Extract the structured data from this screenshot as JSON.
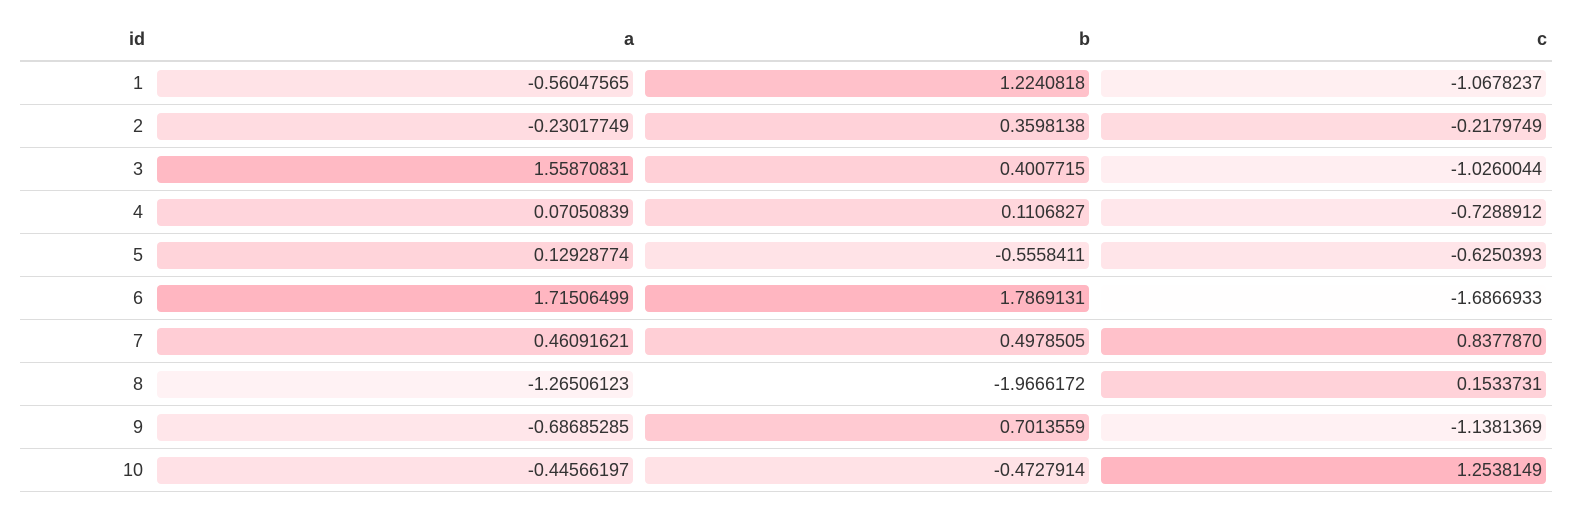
{
  "table": {
    "columns": [
      "id",
      "a",
      "b",
      "c"
    ],
    "rows": [
      {
        "id": "1",
        "a": "-0.56047565",
        "b": "1.2240818",
        "c": "-1.0678237",
        "a_level": 0.38,
        "b_level": 0.85,
        "c_level": 0.22
      },
      {
        "id": "2",
        "a": "-0.23017749",
        "b": "0.3598138",
        "c": "-0.2179749",
        "a_level": 0.48,
        "b_level": 0.62,
        "c_level": 0.5
      },
      {
        "id": "3",
        "a": "1.55870831",
        "b": "0.4007715",
        "c": "-1.0260044",
        "a_level": 0.95,
        "b_level": 0.64,
        "c_level": 0.23
      },
      {
        "id": "4",
        "a": "0.07050839",
        "b": "0.1106827",
        "c": "-0.7288912",
        "a_level": 0.57,
        "b_level": 0.56,
        "c_level": 0.33
      },
      {
        "id": "5",
        "a": "0.12928774",
        "b": "-0.5558411",
        "c": "-0.6250393",
        "a_level": 0.59,
        "b_level": 0.38,
        "c_level": 0.36
      },
      {
        "id": "6",
        "a": "1.71506499",
        "b": "1.7869131",
        "c": "-1.6866933",
        "a_level": 1.0,
        "b_level": 1.0,
        "c_level": 0.02
      },
      {
        "id": "7",
        "a": "0.46091621",
        "b": "0.4978505",
        "c": "0.8377870",
        "a_level": 0.68,
        "b_level": 0.66,
        "c_level": 0.85
      },
      {
        "id": "8",
        "a": "-1.26506123",
        "b": "-1.9666172",
        "c": "0.1533731",
        "a_level": 0.18,
        "b_level": 0.0,
        "c_level": 0.62
      },
      {
        "id": "9",
        "a": "-0.68685285",
        "b": "0.7013559",
        "c": "-1.1381369",
        "a_level": 0.34,
        "b_level": 0.72,
        "c_level": 0.19
      },
      {
        "id": "10",
        "a": "-0.44566197",
        "b": "-0.4727914",
        "c": "1.2538149",
        "a_level": 0.41,
        "b_level": 0.4,
        "c_level": 1.0
      }
    ]
  },
  "colors": {
    "scale_low": "#ffffff",
    "scale_high": "#ffb6c1"
  }
}
